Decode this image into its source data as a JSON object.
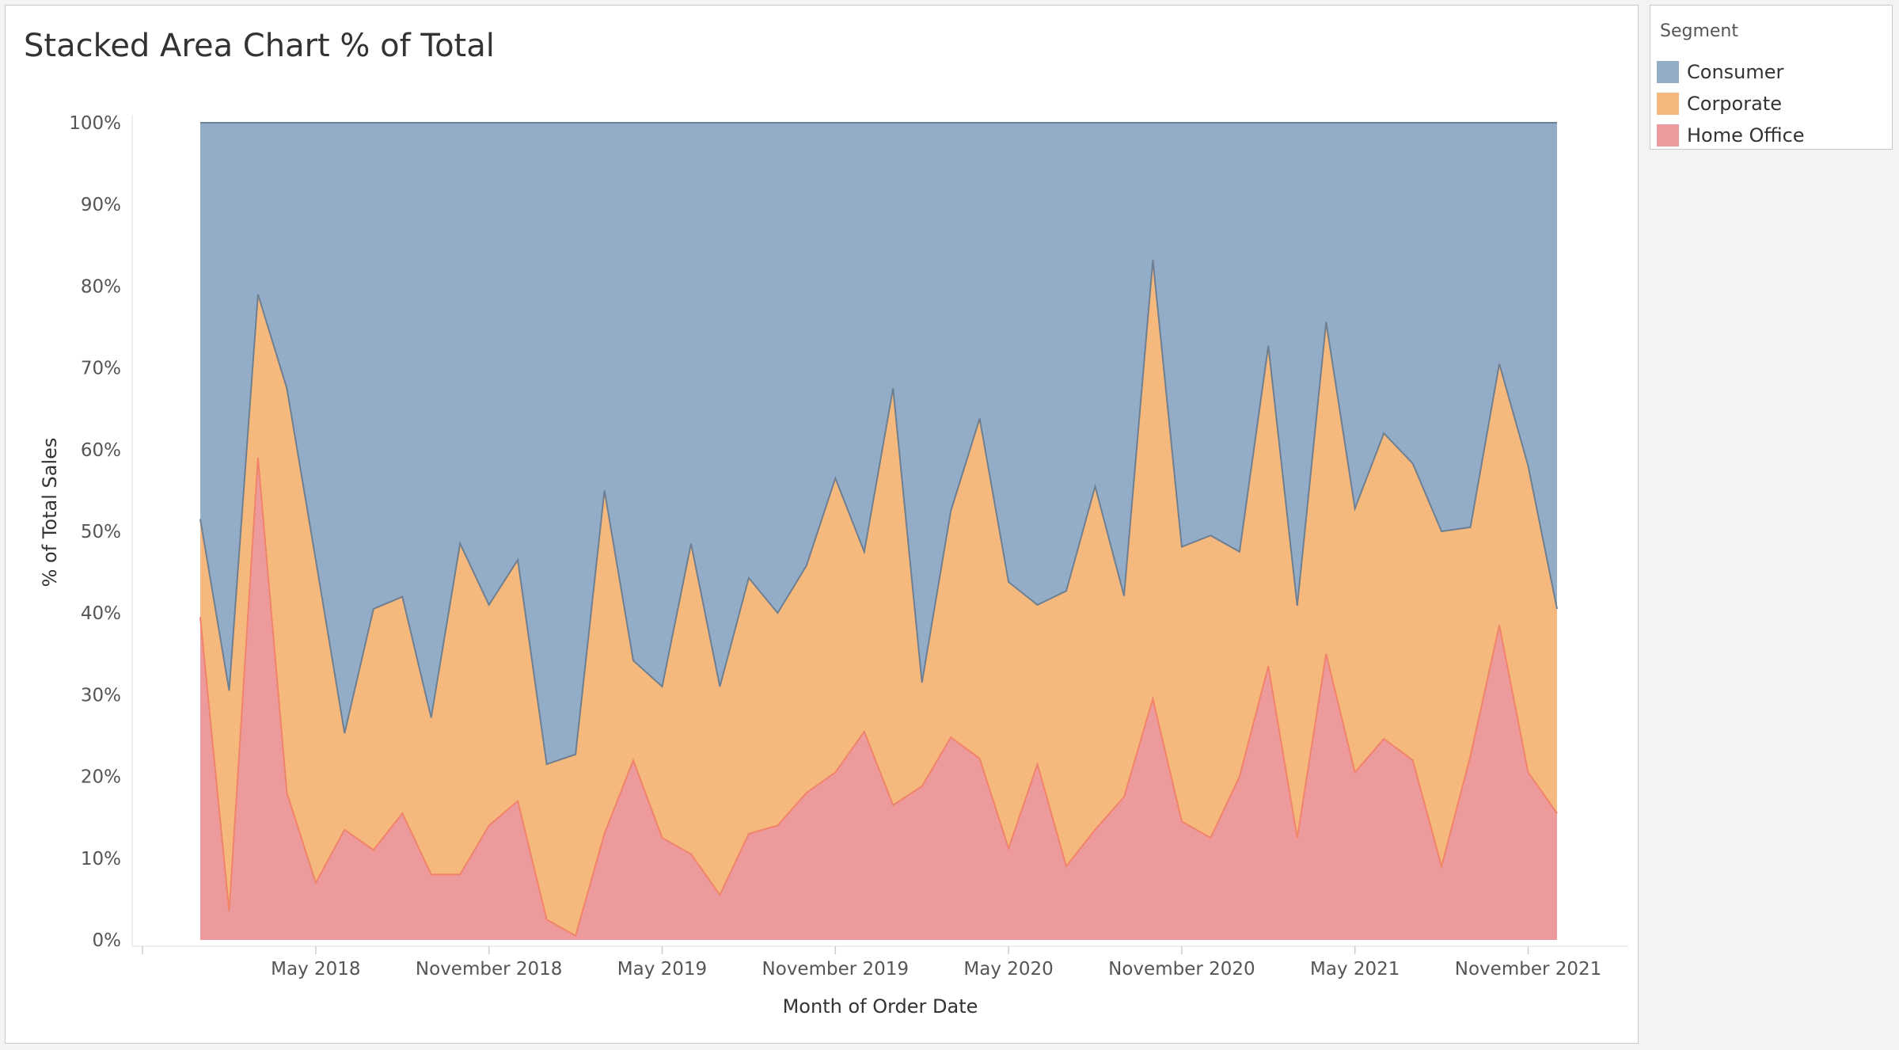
{
  "title": "Stacked Area Chart % of Total",
  "legend": {
    "title": "Segment",
    "items": [
      {
        "label": "Consumer",
        "color": "#93adc9"
      },
      {
        "label": "Corporate",
        "color": "#f5b97e"
      },
      {
        "label": "Home Office",
        "color": "#ec9a9c"
      }
    ]
  },
  "chart_data": {
    "type": "area",
    "stacked": true,
    "percent_of_total": true,
    "title": "Stacked Area Chart % of Total",
    "xlabel": "Month of Order Date",
    "ylabel": "% of Total Sales",
    "x_start": "2018-01",
    "x_end": "2021-12",
    "x_ticks": [
      {
        "label": "May 2018",
        "date": "2018-05"
      },
      {
        "label": "November 2018",
        "date": "2018-11"
      },
      {
        "label": "May 2019",
        "date": "2019-05"
      },
      {
        "label": "November 2019",
        "date": "2019-11"
      },
      {
        "label": "May 2020",
        "date": "2020-05"
      },
      {
        "label": "November 2020",
        "date": "2020-11"
      },
      {
        "label": "May 2021",
        "date": "2021-05"
      },
      {
        "label": "November 2021",
        "date": "2021-11"
      }
    ],
    "y_ticks": [
      "0%",
      "10%",
      "20%",
      "30%",
      "40%",
      "50%",
      "60%",
      "70%",
      "80%",
      "90%",
      "100%"
    ],
    "ylim": [
      0,
      100
    ],
    "grid": false,
    "legend_position": "right",
    "series": [
      {
        "name": "Home Office",
        "color": "#ec9a9c",
        "line_color": "#f0846a",
        "values": [
          39.5,
          3.5,
          59,
          18,
          7,
          13.5,
          11,
          15.5,
          8,
          8,
          14,
          17,
          2.5,
          0.5,
          13,
          22,
          12.5,
          10.5,
          5.5,
          13,
          14,
          18,
          20.5,
          25.5,
          16.5,
          18.8,
          24.8,
          22.2,
          11.2,
          21.5,
          9,
          13.5,
          17.5,
          29.5,
          14.5,
          12.5,
          20,
          33.5,
          12.5,
          35,
          20.5,
          24.6,
          22,
          9,
          22.5,
          38.5,
          20.5,
          15.5
        ]
      },
      {
        "name": "Corporate",
        "color": "#f5b97e",
        "line_color": "#6f7f90",
        "values": [
          12,
          27,
          20,
          49.5,
          39.5,
          11.8,
          29.5,
          26.5,
          19.2,
          40.5,
          27,
          29.5,
          19,
          22.2,
          42,
          12.2,
          18.5,
          38,
          25.5,
          31.3,
          26,
          27.8,
          36,
          22,
          51,
          12.7,
          27.7,
          41.6,
          32.6,
          19.5,
          33.7,
          42,
          24.6,
          53.7,
          33.6,
          37,
          27.5,
          39.2,
          28.4,
          40.6,
          32.3,
          37.4,
          36.3,
          41,
          28,
          32,
          37.5,
          25
        ]
      },
      {
        "name": "Consumer",
        "color": "#93adc9",
        "line_color": "#6f7f90",
        "values": [
          48.5,
          69.5,
          21,
          32.5,
          53.5,
          74.7,
          59.5,
          58,
          72.8,
          51.5,
          59,
          53.5,
          78.5,
          77.3,
          45,
          65.8,
          69,
          51.5,
          69,
          55.7,
          60,
          54.2,
          43.5,
          52.5,
          32.5,
          68.5,
          47.5,
          36.2,
          56.2,
          59,
          57.3,
          44.5,
          57.9,
          16.8,
          51.9,
          50.5,
          52.5,
          27.3,
          59.1,
          24.4,
          47.2,
          38,
          41.7,
          50,
          49.5,
          29.5,
          42,
          59.5
        ]
      }
    ]
  }
}
